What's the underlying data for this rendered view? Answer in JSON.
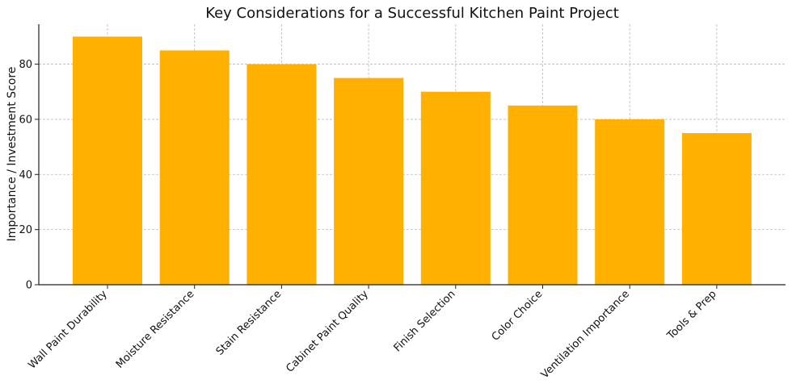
{
  "chart_data": {
    "type": "bar",
    "title": "Key Considerations for a Successful Kitchen Paint Project",
    "xlabel": "",
    "ylabel": "Importance / Investment Score",
    "categories": [
      "Wall Paint Durability",
      "Moisture Resistance",
      "Stain Resistance",
      "Cabinet Paint Quality",
      "Finish Selection",
      "Color Choice",
      "Ventilation Importance",
      "Tools & Prep"
    ],
    "values": [
      90,
      85,
      80,
      75,
      70,
      65,
      60,
      55
    ],
    "ylim": [
      0,
      94.5
    ],
    "yticks": [
      0,
      20,
      40,
      60,
      80
    ],
    "grid": true,
    "bar_color": "#FFB000"
  }
}
